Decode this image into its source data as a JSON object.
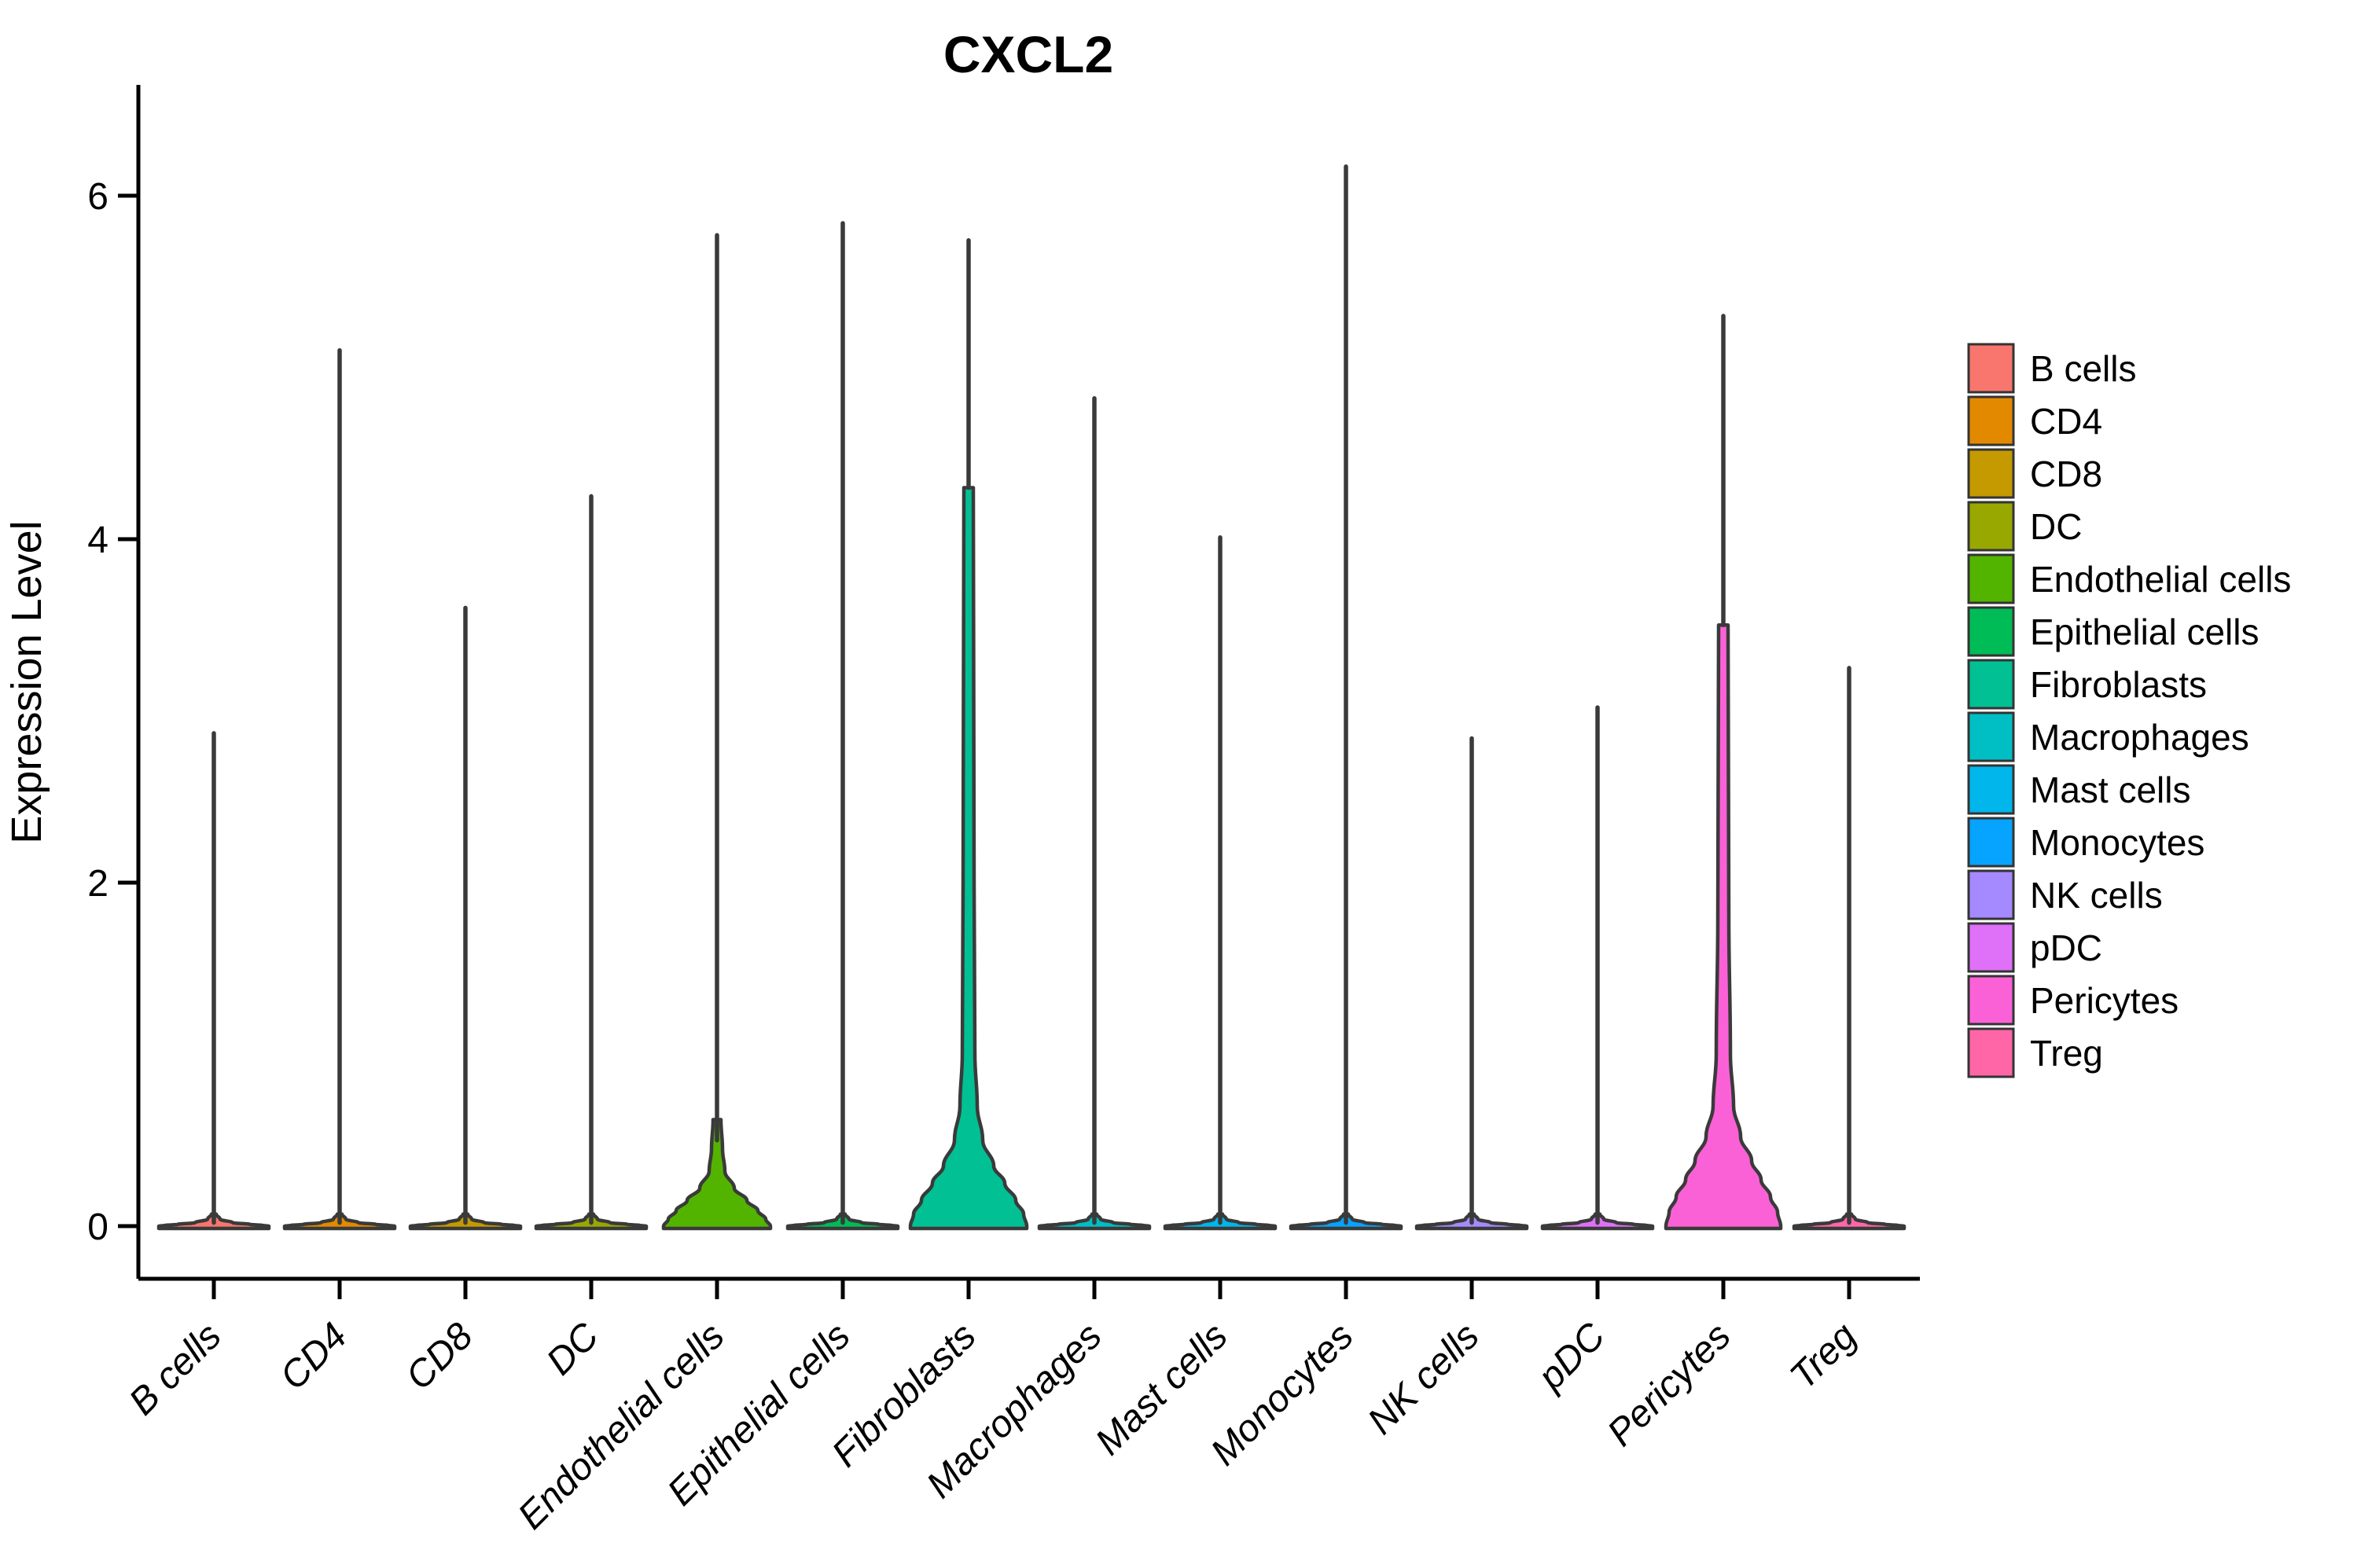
{
  "title": "CXCL2",
  "chart_data": {
    "type": "violin",
    "title": "CXCL2",
    "xlabel": "",
    "ylabel": "Expression Level",
    "ylim": [
      0,
      6.6
    ],
    "yticks": [
      0,
      2,
      4,
      6
    ],
    "grid": false,
    "legend_position": "right",
    "categories": [
      "B cells",
      "CD4",
      "CD8",
      "DC",
      "Endothelial cells",
      "Epithelial cells",
      "Fibroblasts",
      "Macrophages",
      "Mast cells",
      "Monocytes",
      "NK cells",
      "pDC",
      "Pericytes",
      "Treg"
    ],
    "colors": [
      "#F8766D",
      "#E38900",
      "#C49A00",
      "#99A800",
      "#53B400",
      "#00BC56",
      "#00C094",
      "#00BFC4",
      "#00B6EB",
      "#06A4FF",
      "#A58AFF",
      "#DF70F8",
      "#FB61D7",
      "#FF66A8"
    ],
    "outline_color": "#3A3A3A",
    "default_profile": [
      [
        0.07,
        3
      ],
      [
        0.04,
        8
      ],
      [
        0.02,
        24
      ],
      [
        0.01,
        46
      ],
      [
        0.004,
        62
      ],
      [
        0,
        70
      ]
    ],
    "series": [
      {
        "name": "B cells",
        "max_expression": 2.87,
        "bulk_at_zero": true
      },
      {
        "name": "CD4",
        "max_expression": 5.1,
        "bulk_at_zero": true
      },
      {
        "name": "CD8",
        "max_expression": 3.6,
        "bulk_at_zero": true
      },
      {
        "name": "DC",
        "max_expression": 4.25,
        "bulk_at_zero": true
      },
      {
        "name": "Endothelial cells",
        "max_expression": 5.77,
        "bulk_at_zero": true,
        "spike_from": 0.5,
        "profile": [
          [
            0.62,
            5
          ],
          [
            0.45,
            7
          ],
          [
            0.32,
            10
          ],
          [
            0.22,
            22
          ],
          [
            0.15,
            38
          ],
          [
            0.09,
            52
          ],
          [
            0.04,
            62
          ],
          [
            0,
            68
          ]
        ]
      },
      {
        "name": "Epithelial cells",
        "max_expression": 5.84,
        "bulk_at_zero": true
      },
      {
        "name": "Fibroblasts",
        "max_expression": 5.74,
        "bulk_at_zero": true,
        "spike_from": 4.3,
        "profile": [
          [
            4.3,
            6
          ],
          [
            2.0,
            7
          ],
          [
            1.0,
            8
          ],
          [
            0.7,
            11
          ],
          [
            0.5,
            18
          ],
          [
            0.35,
            32
          ],
          [
            0.25,
            46
          ],
          [
            0.15,
            60
          ],
          [
            0.07,
            70
          ],
          [
            0,
            74
          ]
        ]
      },
      {
        "name": "Macrophages",
        "max_expression": 4.82,
        "bulk_at_zero": true
      },
      {
        "name": "Mast cells",
        "max_expression": 4.01,
        "bulk_at_zero": true
      },
      {
        "name": "Monocytes",
        "max_expression": 6.17,
        "bulk_at_zero": true
      },
      {
        "name": "NK cells",
        "max_expression": 2.84,
        "bulk_at_zero": true
      },
      {
        "name": "pDC",
        "max_expression": 3.02,
        "bulk_at_zero": true
      },
      {
        "name": "Pericytes",
        "max_expression": 5.3,
        "bulk_at_zero": true,
        "spike_from": 3.5,
        "profile": [
          [
            3.5,
            6
          ],
          [
            1.8,
            7
          ],
          [
            1.0,
            9
          ],
          [
            0.7,
            13
          ],
          [
            0.52,
            22
          ],
          [
            0.38,
            36
          ],
          [
            0.27,
            48
          ],
          [
            0.17,
            60
          ],
          [
            0.08,
            69
          ],
          [
            0,
            73
          ]
        ]
      },
      {
        "name": "Treg",
        "max_expression": 3.25,
        "bulk_at_zero": true
      }
    ]
  },
  "legend": {
    "entries": [
      {
        "label": "B cells",
        "color": "#F8766D"
      },
      {
        "label": "CD4",
        "color": "#E38900"
      },
      {
        "label": "CD8",
        "color": "#C49A00"
      },
      {
        "label": "DC",
        "color": "#99A800"
      },
      {
        "label": "Endothelial cells",
        "color": "#53B400"
      },
      {
        "label": "Epithelial cells",
        "color": "#00BC56"
      },
      {
        "label": "Fibroblasts",
        "color": "#00C094"
      },
      {
        "label": "Macrophages",
        "color": "#00BFC4"
      },
      {
        "label": "Mast cells",
        "color": "#00B6EB"
      },
      {
        "label": "Monocytes",
        "color": "#06A4FF"
      },
      {
        "label": "NK cells",
        "color": "#A58AFF"
      },
      {
        "label": "pDC",
        "color": "#DF70F8"
      },
      {
        "label": "Pericytes",
        "color": "#FB61D7"
      },
      {
        "label": "Treg",
        "color": "#FF66A8"
      }
    ]
  }
}
